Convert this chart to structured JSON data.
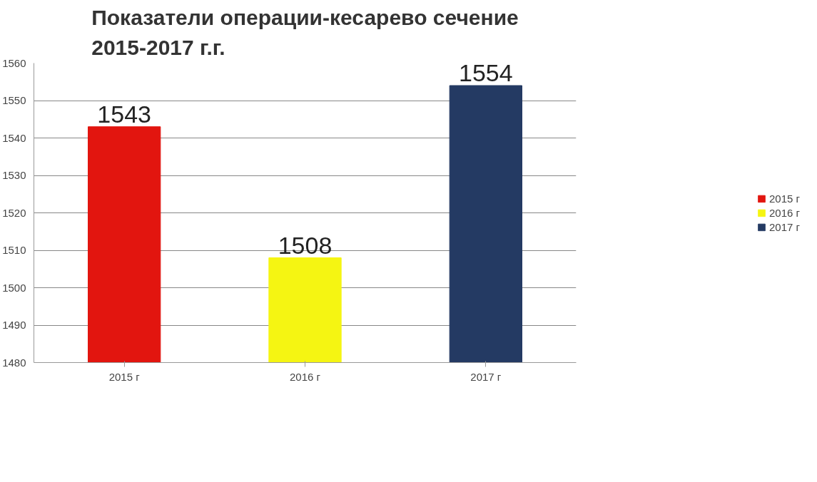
{
  "chart_data": {
    "type": "bar",
    "title": "Показатели операции-кесарево сечение\n2015-2017 г.г.",
    "categories": [
      "2015 г",
      "2016 г",
      "2017 г"
    ],
    "series": [
      {
        "name": "2015 г",
        "color": "#e2150f",
        "values": [
          1543,
          null,
          null
        ]
      },
      {
        "name": "2016 г",
        "color": "#f5f512",
        "values": [
          null,
          1508,
          null
        ]
      },
      {
        "name": "2017 г",
        "color": "#243a63",
        "values": [
          null,
          null,
          1554
        ]
      }
    ],
    "ylim": [
      1480,
      1560
    ],
    "yticks": [
      1480,
      1490,
      1500,
      1510,
      1520,
      1530,
      1540,
      1550,
      1560
    ],
    "grid": "y",
    "legend": "right",
    "data_labels": true
  }
}
